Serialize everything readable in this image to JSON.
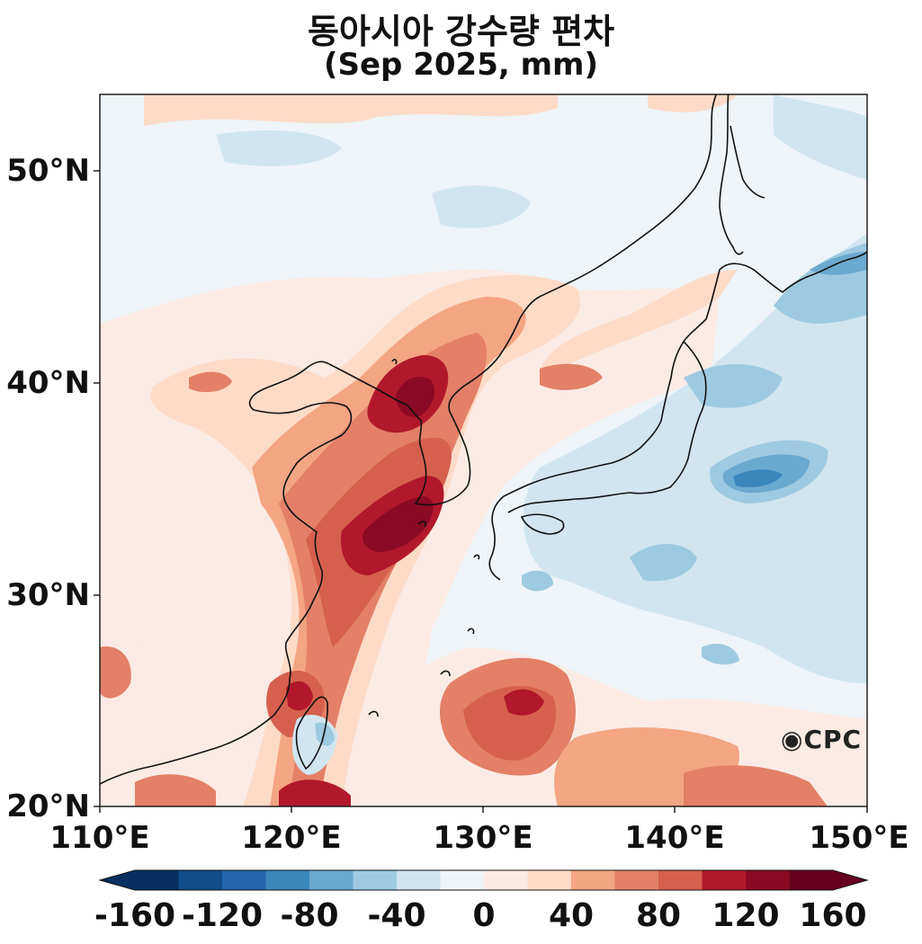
{
  "title": "동아시아 강수량 편차",
  "subtitle": "(Sep 2025, mm)",
  "logo_text": "CPC",
  "y_axis_labels": [
    "50°N",
    "40°N",
    "30°N",
    "20°N"
  ],
  "x_axis_labels": [
    "110°E",
    "120°E",
    "130°E",
    "140°E",
    "150°E"
  ],
  "colorbar": {
    "tick_labels": [
      "-160",
      "-120",
      "-80",
      "-40",
      "0",
      "40",
      "80",
      "120",
      "160"
    ],
    "colors": [
      "#053061",
      "#134c8a",
      "#2166ac",
      "#3a87bc",
      "#6aa9d0",
      "#9ecae1",
      "#d1e5f0",
      "#eef4f8",
      "#fbebe4",
      "#fddbc7",
      "#f4a582",
      "#e38067",
      "#d6604d",
      "#b2182b",
      "#8b0a24",
      "#67001f"
    ],
    "extend": "both"
  },
  "map": {
    "lon_range": [
      110,
      150
    ],
    "lat_range": [
      20,
      53.5
    ],
    "projection": "PlateCarree",
    "coastlines": true
  }
}
